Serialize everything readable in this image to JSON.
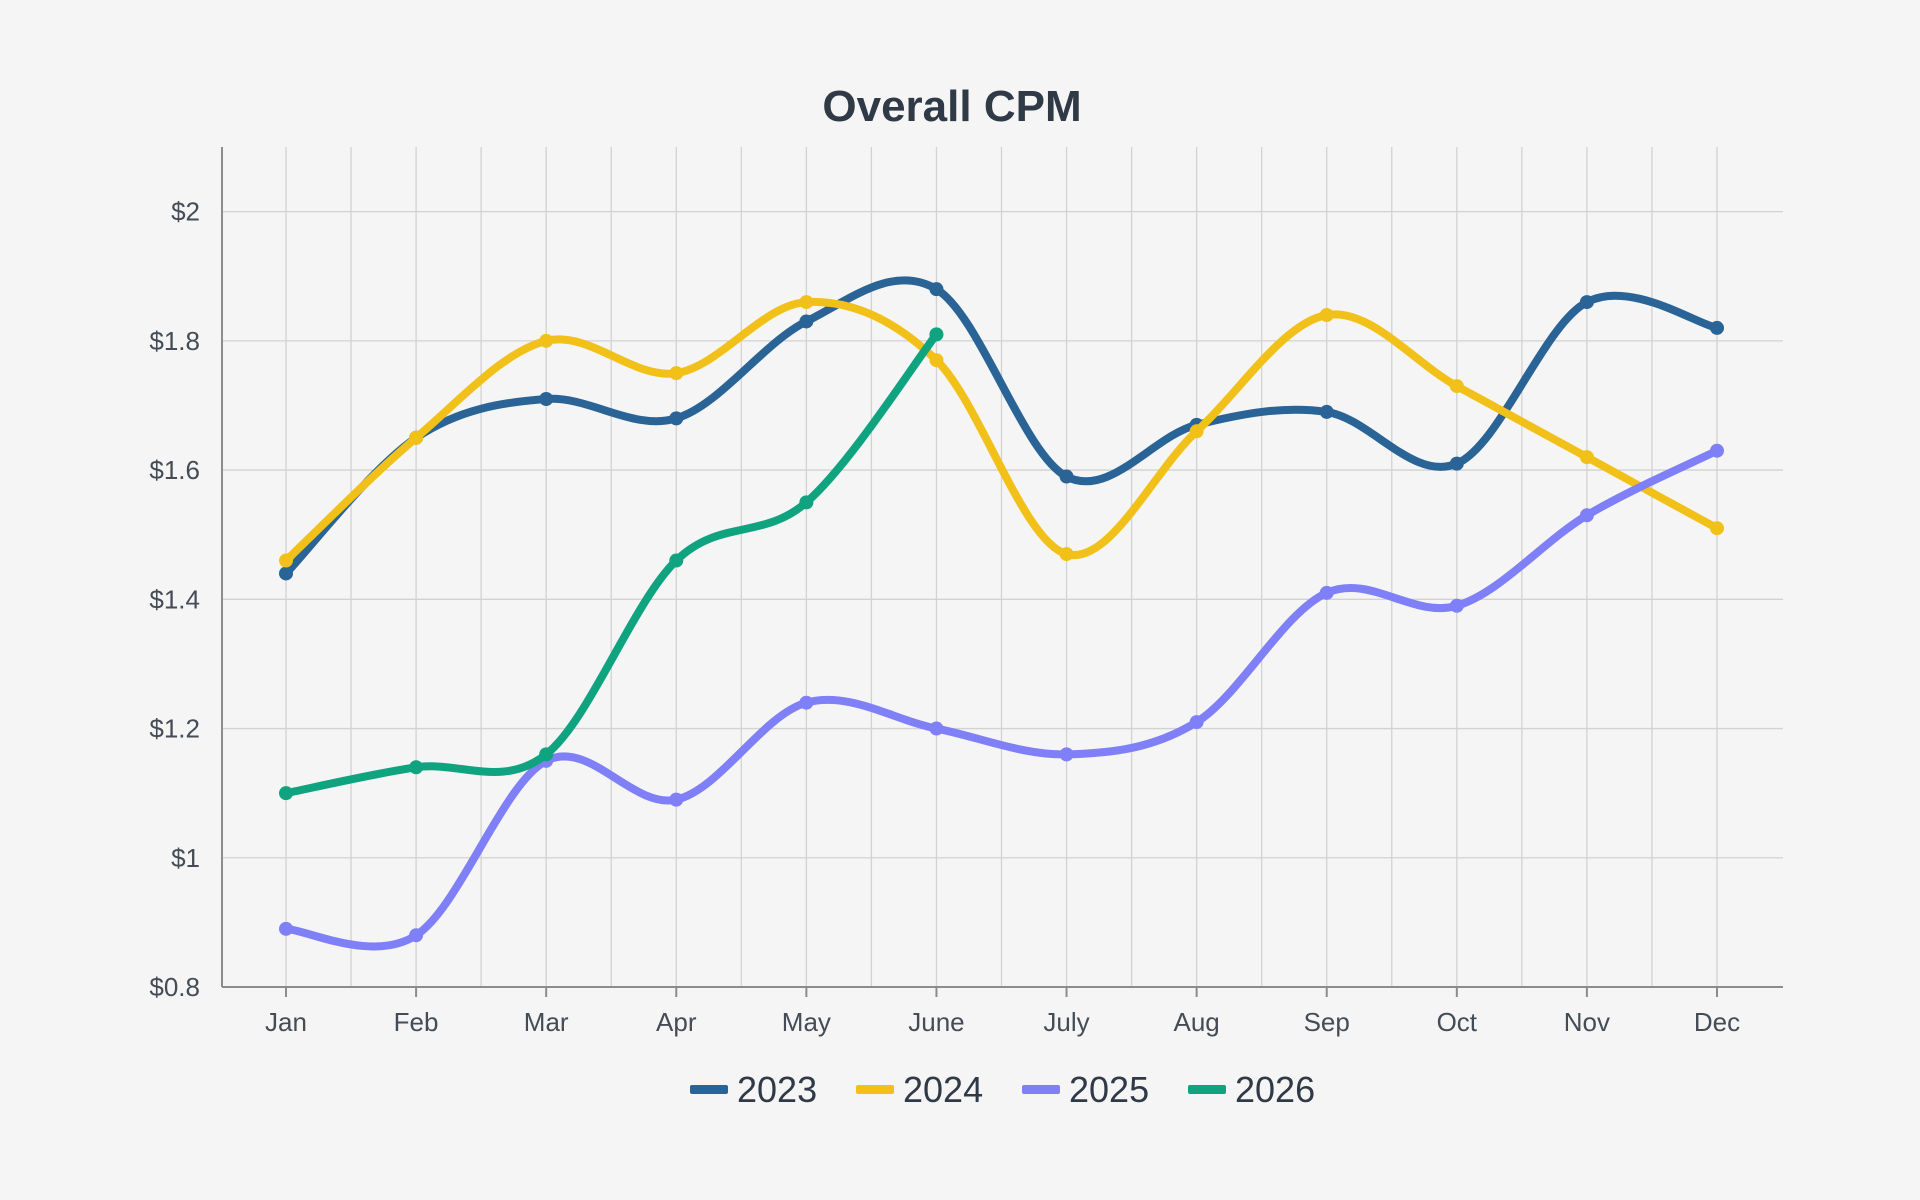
{
  "colors": {
    "background": "#f5f5f5",
    "grid": "#d2d2d2",
    "axis": "#8c8c8c",
    "title": "#2f3a46"
  },
  "chart_data": {
    "type": "line",
    "title": "Overall CPM",
    "xlabel": "",
    "ylabel": "",
    "categories": [
      "Jan",
      "Feb",
      "Mar",
      "Apr",
      "May",
      "June",
      "July",
      "Aug",
      "Sep",
      "Oct",
      "Nov",
      "Dec"
    ],
    "ylim": [
      0.8,
      2.1
    ],
    "y_ticks": [
      0.8,
      1.0,
      1.2,
      1.4,
      1.6,
      1.8,
      2.0
    ],
    "y_tick_labels": [
      "$0.8",
      "$1",
      "$1.2",
      "$1.4",
      "$1.6",
      "$1.8",
      "$2"
    ],
    "grid": true,
    "legend_position": "bottom",
    "smooth": true,
    "series": [
      {
        "name": "2023",
        "color": "#2a6496",
        "values": [
          1.44,
          1.65,
          1.71,
          1.68,
          1.83,
          1.88,
          1.59,
          1.67,
          1.69,
          1.61,
          1.86,
          1.82
        ]
      },
      {
        "name": "2024",
        "color": "#f2c119",
        "values": [
          1.46,
          1.65,
          1.8,
          1.75,
          1.86,
          1.77,
          1.47,
          1.66,
          1.84,
          1.73,
          1.62,
          1.51
        ]
      },
      {
        "name": "2025",
        "color": "#7f7ff7",
        "values": [
          0.89,
          0.88,
          1.15,
          1.09,
          1.24,
          1.2,
          1.16,
          1.21,
          1.41,
          1.39,
          1.53,
          1.63
        ]
      },
      {
        "name": "2026",
        "color": "#10a37f",
        "values": [
          1.1,
          1.14,
          1.16,
          1.46,
          1.55,
          1.81,
          null,
          null,
          null,
          null,
          null,
          null
        ]
      }
    ]
  }
}
